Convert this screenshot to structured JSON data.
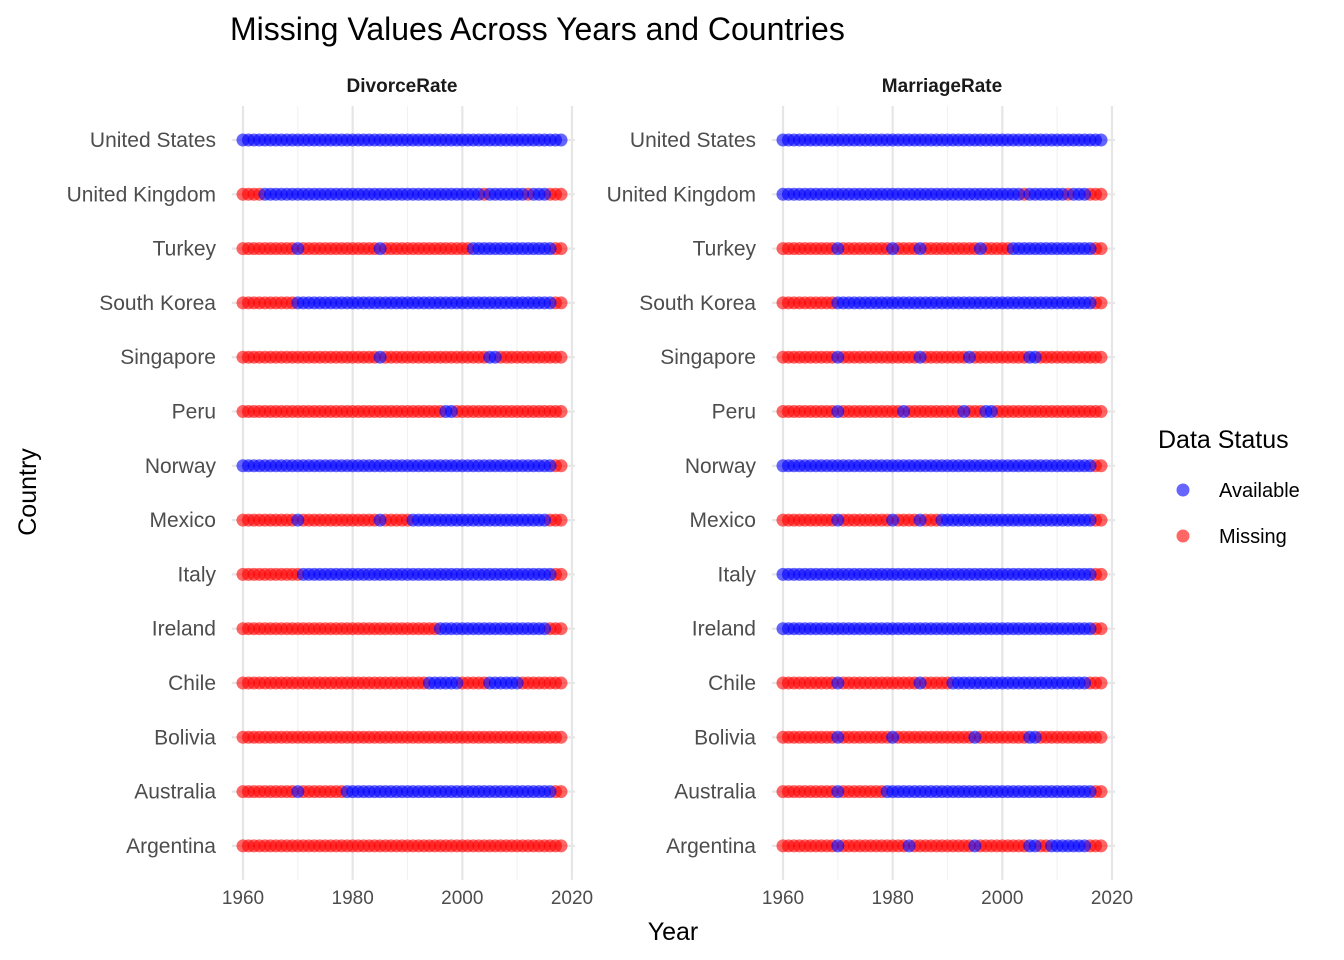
{
  "chart_data": {
    "type": "scatter",
    "title": "Missing Values Across Years and Countries",
    "xlabel": "Year",
    "ylabel": "Country",
    "xlim": [
      1960,
      2018
    ],
    "xticks": [
      "1960",
      "1980",
      "2000",
      "2020"
    ],
    "countries": [
      "United States",
      "United Kingdom",
      "Turkey",
      "South Korea",
      "Singapore",
      "Peru",
      "Norway",
      "Mexico",
      "Italy",
      "Ireland",
      "Chile",
      "Bolivia",
      "Australia",
      "Argentina"
    ],
    "legend": {
      "title": "Data Status",
      "position": "right",
      "items": [
        {
          "label": "Available",
          "color": "#0000ff"
        },
        {
          "label": "Missing",
          "color": "#ff0000"
        }
      ]
    },
    "grid": true,
    "panels": [
      {
        "name": "DivorceRate",
        "available_ranges": {
          "United States": [
            [
              1960,
              2018
            ]
          ],
          "United Kingdom": [
            [
              1964,
              2003
            ],
            [
              2005,
              2011
            ],
            [
              2013,
              2015
            ]
          ],
          "Turkey": [
            [
              1970,
              1970
            ],
            [
              1985,
              1985
            ],
            [
              2002,
              2016
            ]
          ],
          "South Korea": [
            [
              1970,
              2016
            ]
          ],
          "Singapore": [
            [
              1985,
              1985
            ],
            [
              2005,
              2006
            ]
          ],
          "Peru": [
            [
              1997,
              1998
            ]
          ],
          "Norway": [
            [
              1960,
              2016
            ]
          ],
          "Mexico": [
            [
              1970,
              1970
            ],
            [
              1985,
              1985
            ],
            [
              1991,
              2015
            ]
          ],
          "Italy": [
            [
              1971,
              2016
            ]
          ],
          "Ireland": [
            [
              1996,
              2015
            ]
          ],
          "Chile": [
            [
              1994,
              1999
            ],
            [
              2005,
              2010
            ]
          ],
          "Bolivia": [],
          "Australia": [
            [
              1970,
              1970
            ],
            [
              1979,
              2016
            ]
          ],
          "Argentina": []
        }
      },
      {
        "name": "MarriageRate",
        "available_ranges": {
          "United States": [
            [
              1960,
              2018
            ]
          ],
          "United Kingdom": [
            [
              1960,
              2003
            ],
            [
              2005,
              2011
            ],
            [
              2013,
              2015
            ]
          ],
          "Turkey": [
            [
              1970,
              1970
            ],
            [
              1980,
              1980
            ],
            [
              1985,
              1985
            ],
            [
              1996,
              1996
            ],
            [
              2002,
              2016
            ]
          ],
          "South Korea": [
            [
              1970,
              2016
            ]
          ],
          "Singapore": [
            [
              1970,
              1970
            ],
            [
              1985,
              1985
            ],
            [
              1994,
              1994
            ],
            [
              2005,
              2006
            ]
          ],
          "Peru": [
            [
              1970,
              1970
            ],
            [
              1982,
              1982
            ],
            [
              1993,
              1993
            ],
            [
              1997,
              1998
            ]
          ],
          "Norway": [
            [
              1960,
              2016
            ]
          ],
          "Mexico": [
            [
              1970,
              1970
            ],
            [
              1980,
              1980
            ],
            [
              1985,
              1985
            ],
            [
              1989,
              2016
            ]
          ],
          "Italy": [
            [
              1960,
              2016
            ]
          ],
          "Ireland": [
            [
              1960,
              2016
            ]
          ],
          "Chile": [
            [
              1970,
              1970
            ],
            [
              1985,
              1985
            ],
            [
              1991,
              2015
            ]
          ],
          "Bolivia": [
            [
              1970,
              1970
            ],
            [
              1980,
              1980
            ],
            [
              1995,
              1995
            ],
            [
              2005,
              2006
            ]
          ],
          "Australia": [
            [
              1970,
              1970
            ],
            [
              1979,
              2016
            ]
          ],
          "Argentina": [
            [
              1970,
              1970
            ],
            [
              1983,
              1983
            ],
            [
              1995,
              1995
            ],
            [
              2005,
              2006
            ],
            [
              2009,
              2015
            ]
          ]
        }
      }
    ]
  }
}
